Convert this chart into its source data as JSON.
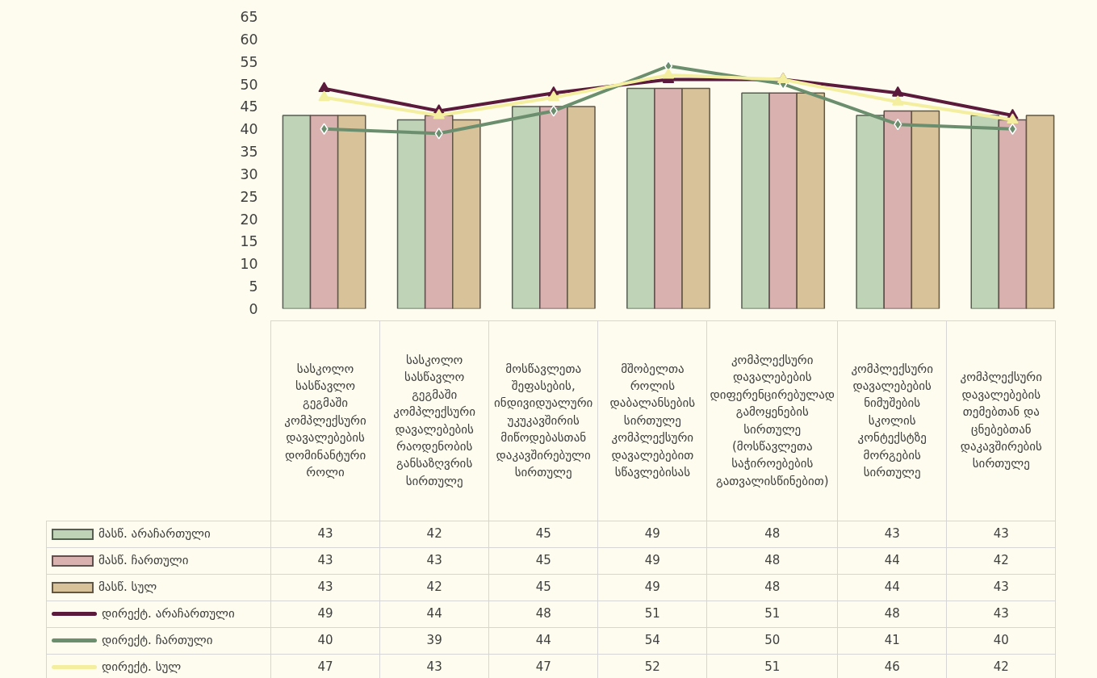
{
  "chart_data": {
    "type": "bar",
    "categories": [
      "სასკოლო სასწავლო გეგმაში კომპლექსური დავალებების დომინანტური როლი",
      "სასკოლო სასწავლო გეგმაში კომპლექსური დავალებების რაოდენობის განსაზღვრის სირთულე",
      "მოსწავლეთა შეფასების, ინდივიდუალური უკუკავშირის მიწოდებასთან დაკავშირებული სირთულე",
      "მშობელთა როლის დაბალანსების სირთულე კომპლექსური დავალებებით სწავლებისას",
      "კომპლექსური დავალებების დიფერენცირებულად გამოყენების სირთულე (მოსწავლეთა საჭიროებების გათვალისწინებით)",
      "კომპლექსური დავალებების ნიმუშების სკოლის კონტექსტზე მორგების სირთულე",
      "კომპლექსური დავალებების თემებთან და ცნებებთან დაკავშირების სირთულე"
    ],
    "series": [
      {
        "name": "მასწ. არაჩართული",
        "color": "#bfd3b6",
        "values": [
          43,
          42,
          45,
          49,
          48,
          43,
          43
        ]
      },
      {
        "name": "მასწ. ჩართული",
        "color": "#d9b1ae",
        "values": [
          43,
          43,
          45,
          49,
          48,
          44,
          42
        ]
      },
      {
        "name": "მასწ. სულ",
        "color": "#d8c299",
        "values": [
          43,
          42,
          45,
          49,
          48,
          44,
          43
        ]
      },
      {
        "name": "დირექტ. არაჩართული",
        "type": "line",
        "marker": "triangle",
        "color": "#5b1a3c",
        "values": [
          49,
          44,
          48,
          51,
          51,
          48,
          43
        ]
      },
      {
        "name": "დირექტ. ჩართული",
        "type": "line",
        "marker": "diamond",
        "color": "#6b8f6e",
        "values": [
          40,
          39,
          44,
          54,
          50,
          41,
          40
        ]
      },
      {
        "name": "დირექტ. სულ",
        "type": "line",
        "marker": "triangle",
        "color": "#f3eea0",
        "values": [
          47,
          43,
          47,
          52,
          51,
          46,
          42
        ]
      }
    ],
    "ylim": [
      0,
      65
    ],
    "yticks": [
      0,
      5,
      10,
      15,
      20,
      25,
      30,
      35,
      40,
      45,
      50,
      55,
      60,
      65
    ],
    "grid": false,
    "legend": "bottom",
    "data_labels": true
  }
}
